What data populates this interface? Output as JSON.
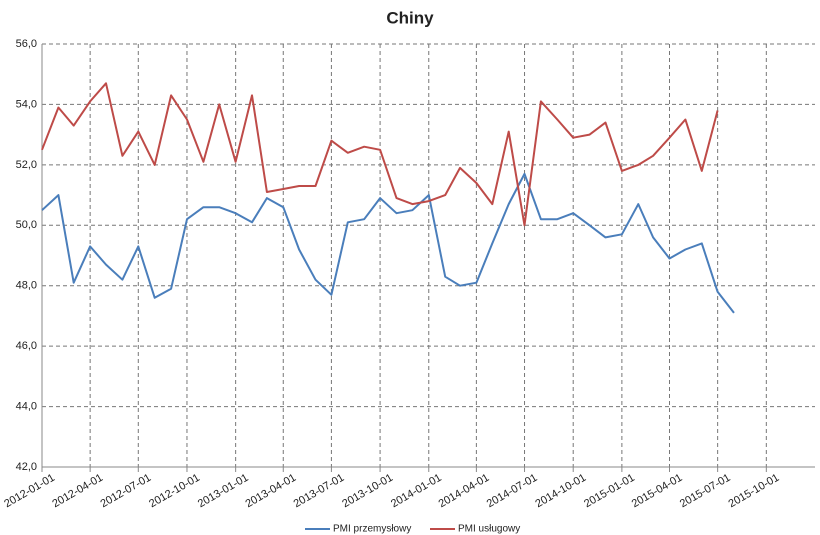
{
  "chart_data": {
    "type": "line",
    "title": "Chiny",
    "x": [
      "2012-01-01",
      "2012-02-01",
      "2012-03-01",
      "2012-04-01",
      "2012-05-01",
      "2012-06-01",
      "2012-07-01",
      "2012-08-01",
      "2012-09-01",
      "2012-10-01",
      "2012-11-01",
      "2012-12-01",
      "2013-01-01",
      "2013-02-01",
      "2013-03-01",
      "2013-04-01",
      "2013-05-01",
      "2013-06-01",
      "2013-07-01",
      "2013-08-01",
      "2013-09-01",
      "2013-10-01",
      "2013-11-01",
      "2013-12-01",
      "2014-01-01",
      "2014-02-01",
      "2014-03-01",
      "2014-04-01",
      "2014-05-01",
      "2014-06-01",
      "2014-07-01",
      "2014-08-01",
      "2014-09-01",
      "2014-10-01",
      "2014-11-01",
      "2014-12-01",
      "2015-01-01",
      "2015-02-01",
      "2015-03-01",
      "2015-04-01",
      "2015-05-01",
      "2015-06-01",
      "2015-07-01",
      "2015-08-01"
    ],
    "series": [
      {
        "name": "PMI przemysłowy",
        "color": "#4a7ebb",
        "values": [
          50.5,
          51.0,
          48.1,
          49.3,
          48.7,
          48.2,
          49.3,
          47.6,
          47.9,
          50.2,
          50.6,
          50.6,
          50.4,
          50.1,
          50.9,
          50.6,
          49.2,
          48.2,
          47.7,
          50.1,
          50.2,
          50.9,
          50.4,
          50.5,
          51.0,
          48.3,
          48.0,
          48.1,
          49.4,
          50.7,
          51.7,
          50.2,
          50.2,
          50.4,
          50.0,
          49.6,
          49.7,
          50.7,
          49.6,
          48.9,
          49.2,
          49.4,
          47.8,
          47.1
        ]
      },
      {
        "name": "PMI usługowy",
        "color": "#be4b48",
        "values": [
          52.5,
          53.9,
          53.3,
          54.1,
          54.7,
          52.3,
          53.1,
          52.0,
          54.3,
          53.5,
          52.1,
          54.0,
          52.1,
          54.3,
          51.1,
          51.2,
          51.3,
          51.3,
          52.8,
          52.4,
          52.6,
          52.5,
          50.9,
          50.7,
          50.8,
          51.0,
          51.9,
          51.4,
          50.7,
          53.1,
          50.0,
          54.1,
          53.5,
          52.9,
          53.0,
          53.4,
          51.8,
          52.0,
          52.3,
          52.9,
          53.5,
          51.8,
          53.8,
          null
        ]
      }
    ],
    "xlim": [
      "2012-01-01",
      "2016-01-01"
    ],
    "xticks": [
      "2012-01-01",
      "2012-04-01",
      "2012-07-01",
      "2012-10-01",
      "2013-01-01",
      "2013-04-01",
      "2013-07-01",
      "2013-10-01",
      "2014-01-01",
      "2014-04-01",
      "2014-07-01",
      "2014-10-01",
      "2015-01-01",
      "2015-04-01",
      "2015-07-01",
      "2015-10-01"
    ],
    "ylim": [
      42,
      56
    ],
    "yticks": [
      {
        "value": 42,
        "label": "42,0"
      },
      {
        "value": 44,
        "label": "44,0"
      },
      {
        "value": 46,
        "label": "46,0"
      },
      {
        "value": 48,
        "label": "48,0"
      },
      {
        "value": 50,
        "label": "50,0"
      },
      {
        "value": 52,
        "label": "52,0"
      },
      {
        "value": 54,
        "label": "54,0"
      },
      {
        "value": 56,
        "label": "56,0"
      }
    ],
    "grid": true,
    "legend": "bottom"
  }
}
